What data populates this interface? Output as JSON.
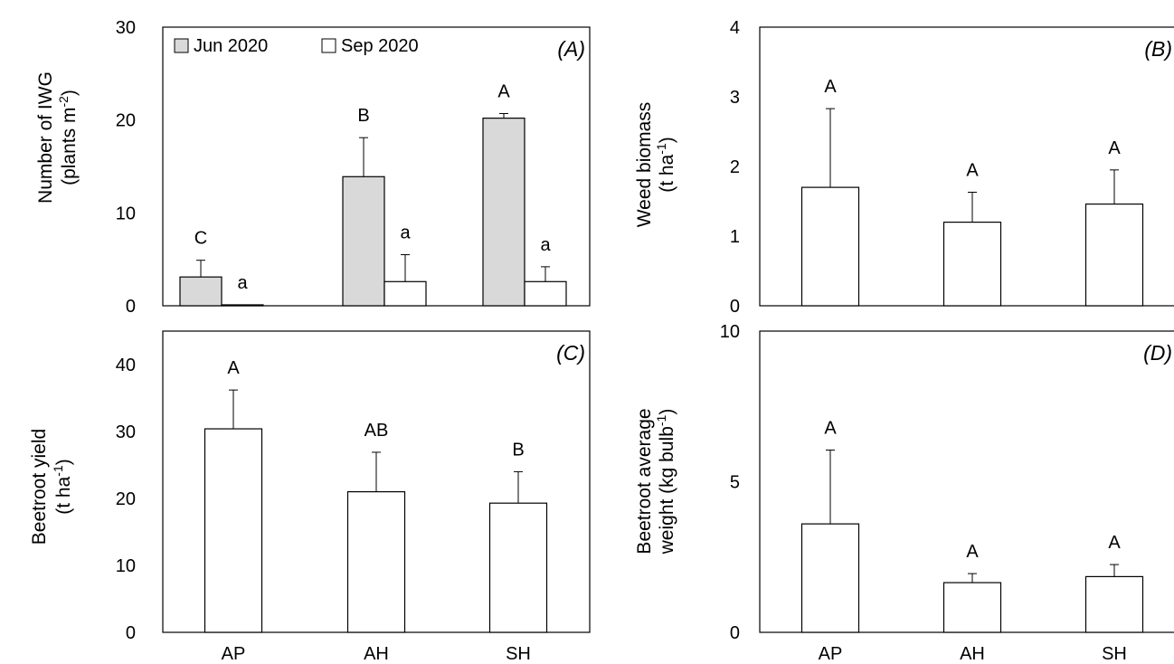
{
  "chart_data": [
    {
      "type": "bar",
      "panel_label": "(A)",
      "ylabel_line1": "Number of IWG",
      "ylabel_line2_pre": "(plants m",
      "ylabel_line2_sup": "-2",
      "ylabel_line2_post": ")",
      "ylim": [
        0,
        30
      ],
      "yticks": [
        0,
        10,
        20,
        30
      ],
      "categories": [
        "AP",
        "AH",
        "SH"
      ],
      "legend_position": "top-left",
      "series": [
        {
          "name": "Jun 2020",
          "color": "#d9d9d9",
          "values": [
            3.1,
            13.9,
            20.2
          ],
          "errors": [
            1.8,
            4.2,
            0.5
          ],
          "letters": [
            "C",
            "B",
            "A"
          ]
        },
        {
          "name": "Sep 2020",
          "color": "#ffffff",
          "values": [
            0.1,
            2.6,
            2.6
          ],
          "errors": [
            0,
            2.9,
            1.6
          ],
          "letters": [
            "a",
            "a",
            "a"
          ]
        }
      ]
    },
    {
      "type": "bar",
      "panel_label": "(B)",
      "ylabel_line1": "Weed biomass",
      "ylabel_line2_pre": "(t ha",
      "ylabel_line2_sup": "-1",
      "ylabel_line2_post": ")",
      "ylim": [
        0,
        4
      ],
      "yticks": [
        0,
        1,
        2,
        3,
        4
      ],
      "categories": [
        "AP",
        "AH",
        "SH"
      ],
      "series": [
        {
          "color": "#ffffff",
          "values": [
            1.7,
            1.2,
            1.46
          ],
          "errors": [
            1.13,
            0.43,
            0.49
          ],
          "letters": [
            "A",
            "A",
            "A"
          ]
        }
      ]
    },
    {
      "type": "bar",
      "panel_label": "(C)",
      "ylabel_line1": "Beetroot yield",
      "ylabel_line2_pre": "(t ha",
      "ylabel_line2_sup": "-1",
      "ylabel_line2_post": ")",
      "ylim": [
        0,
        45
      ],
      "yticks": [
        0,
        10,
        20,
        30,
        40
      ],
      "categories": [
        "AP",
        "AH",
        "SH"
      ],
      "series": [
        {
          "color": "#ffffff",
          "values": [
            30.4,
            21.0,
            19.3
          ],
          "errors": [
            5.8,
            5.9,
            4.7
          ],
          "letters": [
            "A",
            "AB",
            "B"
          ]
        }
      ]
    },
    {
      "type": "bar",
      "panel_label": "(D)",
      "ylabel_line1": "Beetroot average",
      "ylabel_line2_pre": "weight (kg bulb",
      "ylabel_line2_sup": "-1",
      "ylabel_line2_post": ")",
      "ylim": [
        0,
        10
      ],
      "yticks": [
        0,
        5,
        10
      ],
      "categories": [
        "AP",
        "AH",
        "SH"
      ],
      "series": [
        {
          "color": "#ffffff",
          "values": [
            3.6,
            1.65,
            1.85
          ],
          "errors": [
            2.45,
            0.3,
            0.4
          ],
          "letters": [
            "A",
            "A",
            "A"
          ]
        }
      ]
    }
  ]
}
